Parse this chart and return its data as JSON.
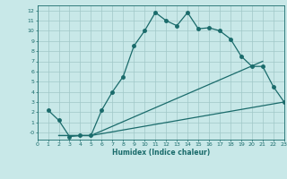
{
  "xlabel": "Humidex (Indice chaleur)",
  "xlim": [
    0,
    23
  ],
  "ylim": [
    -0.7,
    12.5
  ],
  "xticks": [
    0,
    1,
    2,
    3,
    4,
    5,
    6,
    7,
    8,
    9,
    10,
    11,
    12,
    13,
    14,
    15,
    16,
    17,
    18,
    19,
    20,
    21,
    22,
    23
  ],
  "yticks": [
    0,
    1,
    2,
    3,
    4,
    5,
    6,
    7,
    8,
    9,
    10,
    11,
    12
  ],
  "bg_color": "#c8e8e8",
  "grid_color": "#a0c8c8",
  "line_color": "#1a6b6b",
  "line1_x": [
    1,
    2,
    3,
    4,
    5,
    6,
    7,
    8,
    9,
    10,
    11,
    12,
    13,
    14,
    15,
    16,
    17,
    18,
    19,
    20,
    21,
    22,
    23
  ],
  "line1_y": [
    2.2,
    1.2,
    -0.4,
    -0.3,
    -0.3,
    2.2,
    4.0,
    5.5,
    8.5,
    10.0,
    11.8,
    11.0,
    10.5,
    11.8,
    10.2,
    10.3,
    10.0,
    9.2,
    7.5,
    6.5,
    6.5,
    4.5,
    3.0
  ],
  "line2_x": [
    2,
    5,
    23
  ],
  "line2_y": [
    -0.3,
    -0.3,
    3.0
  ],
  "line3_x": [
    2,
    5,
    21
  ],
  "line3_y": [
    -0.3,
    -0.3,
    7.0
  ],
  "marker_size": 2.5,
  "linewidth": 0.9
}
